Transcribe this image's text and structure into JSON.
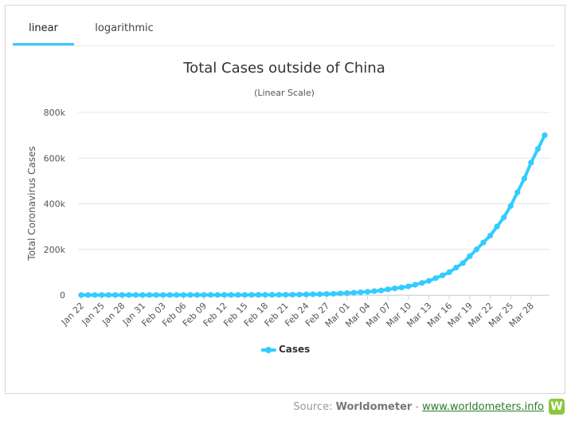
{
  "tabs": [
    {
      "label": "linear",
      "active": true
    },
    {
      "label": "logarithmic",
      "active": false
    }
  ],
  "footer": {
    "source_prefix": "Source:",
    "source_name": "Worldometer",
    "separator": "-",
    "link_text": "www.worldometers.info",
    "logo_letter": "W"
  },
  "colors": {
    "series": "#33ccff",
    "tab_active": "#33ccff",
    "logo": "#8cc63f"
  },
  "chart_data": {
    "type": "line",
    "title": "Total Cases outside of China",
    "subtitle": "(Linear Scale)",
    "ylabel": "Total Coronavirus Cases",
    "xlabel": "",
    "ylim": [
      0,
      800000
    ],
    "y_ticks": [
      "0",
      "200k",
      "400k",
      "600k",
      "800k"
    ],
    "grid": true,
    "legend": "bottom-center",
    "x_tick_labels": [
      "Jan 22",
      "Jan 25",
      "Jan 28",
      "Jan 31",
      "Feb 03",
      "Feb 06",
      "Feb 09",
      "Feb 12",
      "Feb 15",
      "Feb 18",
      "Feb 21",
      "Feb 24",
      "Feb 27",
      "Mar 01",
      "Mar 04",
      "Mar 07",
      "Mar 10",
      "Mar 13",
      "Mar 16",
      "Mar 19",
      "Mar 22",
      "Mar 25",
      "Mar 28"
    ],
    "x": [
      "Jan 22",
      "Jan 23",
      "Jan 24",
      "Jan 25",
      "Jan 26",
      "Jan 27",
      "Jan 28",
      "Jan 29",
      "Jan 30",
      "Jan 31",
      "Feb 01",
      "Feb 02",
      "Feb 03",
      "Feb 04",
      "Feb 05",
      "Feb 06",
      "Feb 07",
      "Feb 08",
      "Feb 09",
      "Feb 10",
      "Feb 11",
      "Feb 12",
      "Feb 13",
      "Feb 14",
      "Feb 15",
      "Feb 16",
      "Feb 17",
      "Feb 18",
      "Feb 19",
      "Feb 20",
      "Feb 21",
      "Feb 22",
      "Feb 23",
      "Feb 24",
      "Feb 25",
      "Feb 26",
      "Feb 27",
      "Feb 28",
      "Feb 29",
      "Mar 01",
      "Mar 02",
      "Mar 03",
      "Mar 04",
      "Mar 05",
      "Mar 06",
      "Mar 07",
      "Mar 08",
      "Mar 09",
      "Mar 10",
      "Mar 11",
      "Mar 12",
      "Mar 13",
      "Mar 14",
      "Mar 15",
      "Mar 16",
      "Mar 17",
      "Mar 18",
      "Mar 19",
      "Mar 20",
      "Mar 21",
      "Mar 22",
      "Mar 23",
      "Mar 24",
      "Mar 25",
      "Mar 26",
      "Mar 27",
      "Mar 28",
      "Mar 29",
      "Mar 30"
    ],
    "series": [
      {
        "name": "Cases",
        "values": [
          10,
          19,
          40,
          50,
          60,
          70,
          80,
          90,
          100,
          130,
          150,
          160,
          180,
          200,
          250,
          290,
          330,
          360,
          400,
          440,
          470,
          500,
          530,
          560,
          600,
          700,
          800,
          900,
          1000,
          1100,
          1300,
          1500,
          2000,
          2500,
          3000,
          3500,
          4500,
          5500,
          7000,
          8500,
          10000,
          12000,
          14000,
          17000,
          20000,
          25000,
          29000,
          33000,
          38000,
          45000,
          53000,
          62000,
          74000,
          86000,
          100000,
          120000,
          140000,
          170000,
          200000,
          230000,
          260000,
          300000,
          340000,
          390000,
          450000,
          510000,
          580000,
          640000,
          700000
        ]
      }
    ]
  }
}
